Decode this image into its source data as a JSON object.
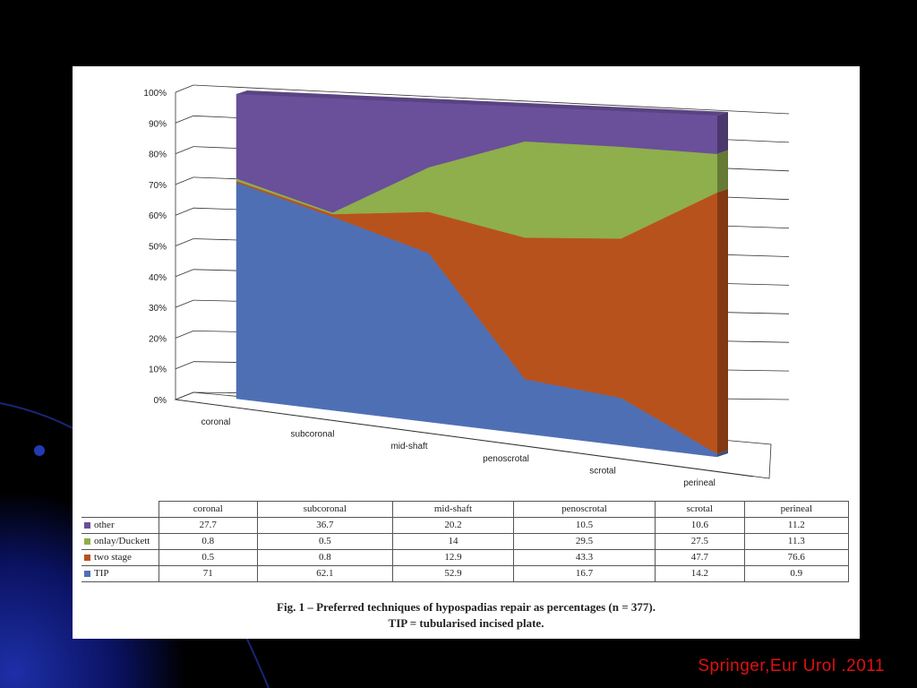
{
  "chart_data": {
    "type": "area",
    "subtype": "100% stacked 3D area",
    "categories": [
      "coronal",
      "subcoronal",
      "mid-shaft",
      "penoscrotal",
      "scrotal",
      "perineal"
    ],
    "series": [
      {
        "name": "TIP",
        "values": [
          71,
          62.1,
          52.9,
          16.7,
          14.2,
          0.9
        ],
        "color": "#4f6fb5"
      },
      {
        "name": "two stage",
        "values": [
          0.5,
          0.8,
          12.9,
          43.3,
          47.7,
          76.6
        ],
        "color": "#b8521c"
      },
      {
        "name": "onlay/Duckett",
        "values": [
          0.8,
          0.5,
          14,
          29.5,
          27.5,
          11.3
        ],
        "color": "#8fae4c"
      },
      {
        "name": "other",
        "values": [
          27.7,
          36.7,
          20.2,
          10.5,
          10.6,
          11.2
        ],
        "color": "#6a4f9a"
      }
    ],
    "y_ticks": [
      "0%",
      "10%",
      "20%",
      "30%",
      "40%",
      "50%",
      "60%",
      "70%",
      "80%",
      "90%",
      "100%"
    ],
    "ylim": [
      0,
      100
    ],
    "grid": true,
    "legend": "table-below"
  },
  "table": {
    "row_order": [
      "other",
      "onlay/Duckett",
      "two stage",
      "TIP"
    ]
  },
  "caption": {
    "line1": "Fig. 1 – Preferred techniques of hypospadias repair as percentages (n = 377).",
    "line2": "TIP = tubularised incised plate."
  },
  "credit": "Springer,Eur Urol .2011",
  "colors": {
    "background": "#000000",
    "credit_text": "#e01010"
  }
}
